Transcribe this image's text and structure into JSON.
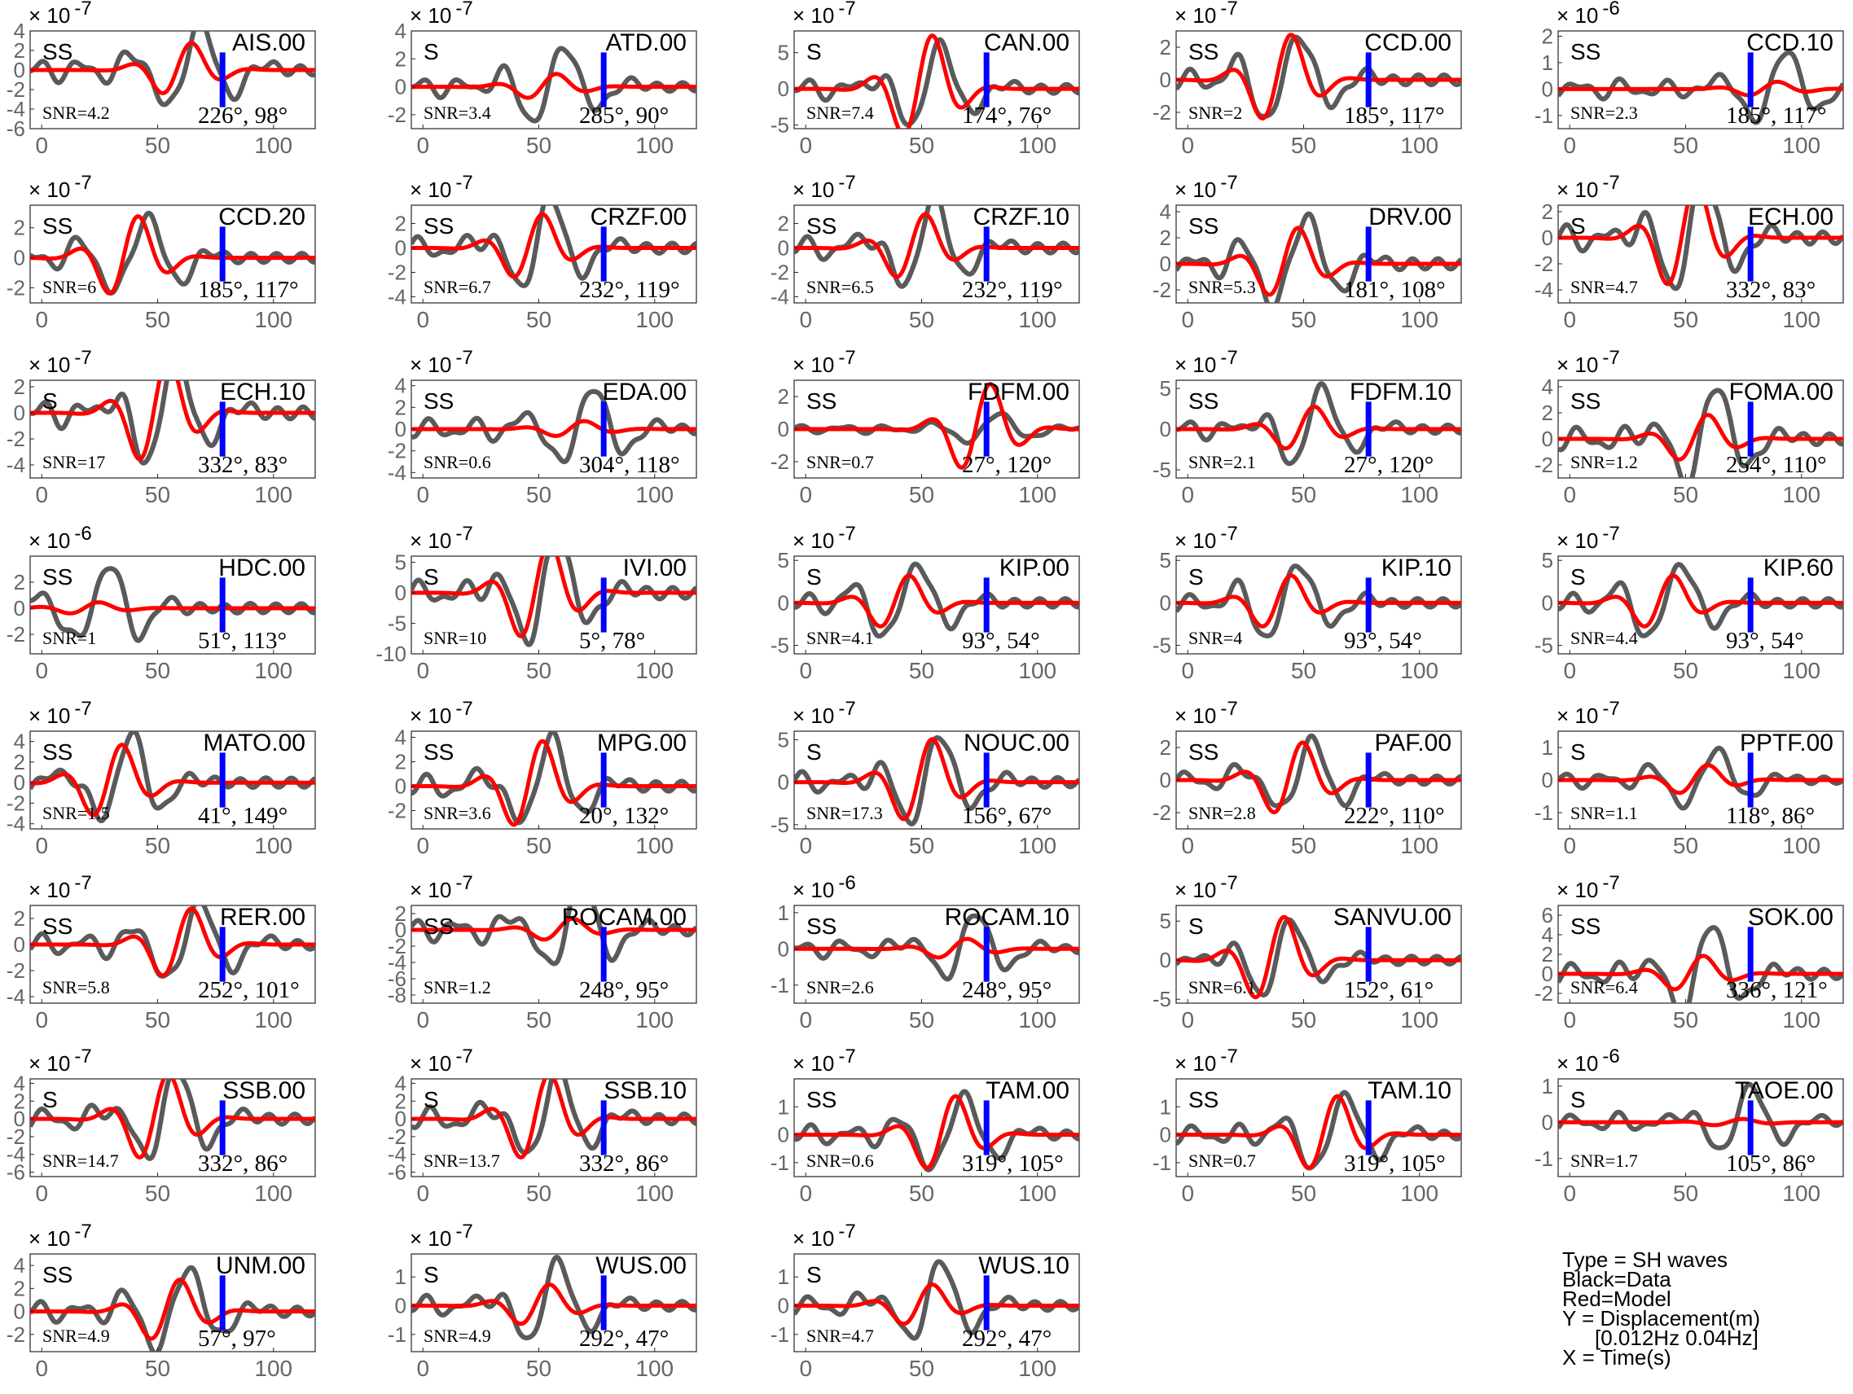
{
  "legend": {
    "lines": [
      "Type = SH waves",
      "Black=Data",
      "Red=Model",
      "Y = Displacement(m)",
      "[0.012Hz 0.04Hz]",
      "X = Time(s)"
    ]
  },
  "chart_data": {
    "type": "line",
    "colors": {
      "data": "#5a5a5a",
      "model": "#ff0000",
      "marker": "#0000ff",
      "ticks": "#666666"
    },
    "x_ticks": [
      0,
      50,
      100
    ],
    "x_range": [
      -5,
      118
    ],
    "marker_time": 78,
    "panels": [
      {
        "station": "AIS.00",
        "phase": "SS",
        "snr": "SNR=4.2",
        "azimuth": "226°, 98°",
        "exponent": "-7",
        "yticks": [
          "4",
          "2",
          "0",
          "-2",
          "-4",
          "-6"
        ],
        "ymin": -6,
        "ymax": 4,
        "model_amp": 3.0,
        "data_amp": 5.0,
        "data_peak": 65
      },
      {
        "station": "ATD.00",
        "phase": "S",
        "snr": "SNR=3.4",
        "azimuth": "285°, 90°",
        "exponent": "-7",
        "yticks": [
          "4",
          "2",
          "0",
          "-2"
        ],
        "ymin": -3,
        "ymax": 4,
        "model_amp": 1.0,
        "data_amp": 3.0,
        "data_peak": 58
      },
      {
        "station": "CAN.00",
        "phase": "S",
        "snr": "SNR=7.4",
        "azimuth": "174°, 76°",
        "exponent": "-7",
        "yticks": [
          "5",
          "0",
          "-5"
        ],
        "ymin": -5.5,
        "ymax": 8,
        "model_amp": 8.0,
        "data_amp": 6.0,
        "data_peak": 55
      },
      {
        "station": "CCD.00",
        "phase": "SS",
        "snr": "SNR=2",
        "azimuth": "185°, 117°",
        "exponent": "-7",
        "yticks": [
          "2",
          "0",
          "-2"
        ],
        "ymin": -3,
        "ymax": 3,
        "model_amp": 3.0,
        "data_amp": 3.0,
        "data_peak": 45
      },
      {
        "station": "CCD.10",
        "phase": "SS",
        "snr": "SNR=2.3",
        "azimuth": "185°, 117°",
        "exponent": "-6",
        "yticks": [
          "2",
          "1",
          "0",
          "-1"
        ],
        "ymin": -1.5,
        "ymax": 2.2,
        "model_amp": 0.3,
        "data_amp": 1.5,
        "data_peak": 90
      },
      {
        "station": "CCD.20",
        "phase": "SS",
        "snr": "SNR=6",
        "azimuth": "185°, 117°",
        "exponent": "-7",
        "yticks": [
          "2",
          "0",
          "-2"
        ],
        "ymin": -3,
        "ymax": 3.5,
        "model_amp": 3.0,
        "data_amp": 3.0,
        "data_peak": 42
      },
      {
        "station": "CRZF.00",
        "phase": "SS",
        "snr": "SNR=6.7",
        "azimuth": "232°, 119°",
        "exponent": "-7",
        "yticks": [
          "2",
          "0",
          "-2",
          "-4"
        ],
        "ymin": -4.5,
        "ymax": 3.5,
        "model_amp": 3.0,
        "data_amp": 4.0,
        "data_peak": 52
      },
      {
        "station": "CRZF.10",
        "phase": "SS",
        "snr": "SNR=6.5",
        "azimuth": "232°, 119°",
        "exponent": "-7",
        "yticks": [
          "2",
          "0",
          "-2",
          "-4"
        ],
        "ymin": -4.5,
        "ymax": 3.5,
        "model_amp": 3.0,
        "data_amp": 4.0,
        "data_peak": 52
      },
      {
        "station": "DRV.00",
        "phase": "SS",
        "snr": "SNR=5.3",
        "azimuth": "181°, 108°",
        "exponent": "-7",
        "yticks": [
          "4",
          "2",
          "0",
          "-2"
        ],
        "ymin": -3,
        "ymax": 4.5,
        "model_amp": 3.0,
        "data_amp": 4.0,
        "data_peak": 48
      },
      {
        "station": "ECH.00",
        "phase": "S",
        "snr": "SNR=4.7",
        "azimuth": "332°, 83°",
        "exponent": "-7",
        "yticks": [
          "2",
          "0",
          "-2",
          "-4"
        ],
        "ymin": -5,
        "ymax": 2.5,
        "model_amp": 4.5,
        "data_amp": 4.5,
        "data_peak": 55
      },
      {
        "station": "ECH.10",
        "phase": "S",
        "snr": "SNR=17",
        "azimuth": "332°, 83°",
        "exponent": "-7",
        "yticks": [
          "2",
          "0",
          "-2",
          "-4"
        ],
        "ymin": -5,
        "ymax": 2.5,
        "model_amp": 4.5,
        "data_amp": 4.5,
        "data_peak": 55
      },
      {
        "station": "EDA.00",
        "phase": "SS",
        "snr": "SNR=0.6",
        "azimuth": "304°, 118°",
        "exponent": "-7",
        "yticks": [
          "4",
          "2",
          "0",
          "-2",
          "-4"
        ],
        "ymin": -4.5,
        "ymax": 4.5,
        "model_amp": 0.8,
        "data_amp": 4.0,
        "data_peak": 70
      },
      {
        "station": "FDFM.00",
        "phase": "SS",
        "snr": "SNR=0.7",
        "azimuth": "27°, 120°",
        "exponent": "-7",
        "yticks": [
          "2",
          "0",
          "-2"
        ],
        "ymin": -3,
        "ymax": 3,
        "model_amp": 3.0,
        "data_amp": 1.0,
        "data_peak": 80
      },
      {
        "station": "FDFM.10",
        "phase": "SS",
        "snr": "SNR=2.1",
        "azimuth": "27°, 120°",
        "exponent": "-7",
        "yticks": [
          "5",
          "0",
          "-5"
        ],
        "ymin": -6,
        "ymax": 6,
        "model_amp": 3.0,
        "data_amp": 5.0,
        "data_peak": 55
      },
      {
        "station": "FOMA.00",
        "phase": "SS",
        "snr": "SNR=1.2",
        "azimuth": "254°, 110°",
        "exponent": "-7",
        "yticks": [
          "4",
          "2",
          "0",
          "-2"
        ],
        "ymin": -3,
        "ymax": 4.5,
        "model_amp": 2.0,
        "data_amp": 4.0,
        "data_peak": 60
      },
      {
        "station": "HDC.00",
        "phase": "SS",
        "snr": "SNR=1",
        "azimuth": "51°, 113°",
        "exponent": "-6",
        "yticks": [
          "2",
          "0",
          "-2"
        ],
        "ymin": -3.5,
        "ymax": 4,
        "model_amp": 0.5,
        "data_amp": 3.5,
        "data_peak": 25
      },
      {
        "station": "IVI.00",
        "phase": "S",
        "snr": "SNR=10",
        "azimuth": "5°, 78°",
        "exponent": "-7",
        "yticks": [
          "5",
          "0",
          "-5",
          "-10"
        ],
        "ymin": -10,
        "ymax": 6,
        "model_amp": 9.0,
        "data_amp": 9.0,
        "data_peak": 55
      },
      {
        "station": "KIP.00",
        "phase": "S",
        "snr": "SNR=4.1",
        "azimuth": "93°, 54°",
        "exponent": "-7",
        "yticks": [
          "5",
          "0",
          "-5"
        ],
        "ymin": -6,
        "ymax": 5.5,
        "model_amp": 3.5,
        "data_amp": 5.0,
        "data_peak": 45
      },
      {
        "station": "KIP.10",
        "phase": "S",
        "snr": "SNR=4",
        "azimuth": "93°, 54°",
        "exponent": "-7",
        "yticks": [
          "5",
          "0",
          "-5"
        ],
        "ymin": -6,
        "ymax": 5.5,
        "model_amp": 3.5,
        "data_amp": 5.0,
        "data_peak": 45
      },
      {
        "station": "KIP.60",
        "phase": "S",
        "snr": "SNR=4.4",
        "azimuth": "93°, 54°",
        "exponent": "-7",
        "yticks": [
          "5",
          "0",
          "-5"
        ],
        "ymin": -6,
        "ymax": 5.5,
        "model_amp": 3.5,
        "data_amp": 5.0,
        "data_peak": 45
      },
      {
        "station": "MATO.00",
        "phase": "SS",
        "snr": "SNR=1.5",
        "azimuth": "41°, 149°",
        "exponent": "-7",
        "yticks": [
          "4",
          "2",
          "0",
          "-2",
          "-4"
        ],
        "ymin": -4.5,
        "ymax": 5,
        "model_amp": 4.0,
        "data_amp": 4.5,
        "data_peak": 35
      },
      {
        "station": "MPG.00",
        "phase": "SS",
        "snr": "SNR=3.6",
        "azimuth": "20°, 132°",
        "exponent": "-7",
        "yticks": [
          "4",
          "2",
          "0",
          "-2"
        ],
        "ymin": -3.5,
        "ymax": 4.5,
        "model_amp": 4.0,
        "data_amp": 4.0,
        "data_peak": 52
      },
      {
        "station": "NOUC.00",
        "phase": "S",
        "snr": "SNR=17.3",
        "azimuth": "156°, 67°",
        "exponent": "-7",
        "yticks": [
          "5",
          "0",
          "-5"
        ],
        "ymin": -5.5,
        "ymax": 6,
        "model_amp": 5.5,
        "data_amp": 5.5,
        "data_peak": 55
      },
      {
        "station": "PAF.00",
        "phase": "SS",
        "snr": "SNR=2.8",
        "azimuth": "222°, 110°",
        "exponent": "-7",
        "yticks": [
          "2",
          "0",
          "-2"
        ],
        "ymin": -3,
        "ymax": 3,
        "model_amp": 2.5,
        "data_amp": 2.5,
        "data_peak": 50
      },
      {
        "station": "PPTF.00",
        "phase": "S",
        "snr": "SNR=1.1",
        "azimuth": "118°, 86°",
        "exponent": "-7",
        "yticks": [
          "1",
          "0",
          "-1"
        ],
        "ymin": -1.5,
        "ymax": 1.5,
        "model_amp": 0.5,
        "data_amp": 1.0,
        "data_peak": 60
      },
      {
        "station": "RER.00",
        "phase": "SS",
        "snr": "SNR=5.8",
        "azimuth": "252°, 101°",
        "exponent": "-7",
        "yticks": [
          "2",
          "0",
          "-2",
          "-4"
        ],
        "ymin": -4.5,
        "ymax": 3,
        "model_amp": 3.0,
        "data_amp": 3.5,
        "data_peak": 65
      },
      {
        "station": "ROCAM.00",
        "phase": "SS",
        "snr": "SNR=1.2",
        "azimuth": "248°, 95°",
        "exponent": "-7",
        "yticks": [
          "2",
          "0",
          "-2",
          "-4",
          "-6",
          "-8"
        ],
        "ymin": -9,
        "ymax": 3,
        "model_amp": 1.5,
        "data_amp": 6.0,
        "data_peak": 65
      },
      {
        "station": "ROCAM.10",
        "phase": "SS",
        "snr": "SNR=2.6",
        "azimuth": "248°, 95°",
        "exponent": "-6",
        "yticks": [
          "1",
          "0",
          "-1"
        ],
        "ymin": -1.5,
        "ymax": 1.2,
        "model_amp": 0.3,
        "data_amp": 1.0,
        "data_peak": 70
      },
      {
        "station": "SANVU.00",
        "phase": "S",
        "snr": "SNR=6.1",
        "azimuth": "152°, 61°",
        "exponent": "-7",
        "yticks": [
          "5",
          "0",
          "-5"
        ],
        "ymin": -5.5,
        "ymax": 7,
        "model_amp": 6.0,
        "data_amp": 5.0,
        "data_peak": 42
      },
      {
        "station": "SOK.00",
        "phase": "SS",
        "snr": "SNR=6.4",
        "azimuth": "336°, 121°",
        "exponent": "-7",
        "yticks": [
          "6",
          "4",
          "2",
          "0",
          "-2"
        ],
        "ymin": -3,
        "ymax": 7,
        "model_amp": 2.0,
        "data_amp": 5.0,
        "data_peak": 58
      },
      {
        "station": "SSB.00",
        "phase": "S",
        "snr": "SNR=14.7",
        "azimuth": "332°, 86°",
        "exponent": "-7",
        "yticks": [
          "4",
          "2",
          "0",
          "-2",
          "-4",
          "-6"
        ],
        "ymin": -6.5,
        "ymax": 4.5,
        "model_amp": 5.5,
        "data_amp": 5.5,
        "data_peak": 55
      },
      {
        "station": "SSB.10",
        "phase": "S",
        "snr": "SNR=13.7",
        "azimuth": "332°, 86°",
        "exponent": "-7",
        "yticks": [
          "4",
          "2",
          "0",
          "-2",
          "-4",
          "-6"
        ],
        "ymin": -6.5,
        "ymax": 4.5,
        "model_amp": 5.5,
        "data_amp": 5.5,
        "data_peak": 55
      },
      {
        "station": "TAM.00",
        "phase": "SS",
        "snr": "SNR=0.6",
        "azimuth": "319°, 105°",
        "exponent": "-7",
        "yticks": [
          "1",
          "0",
          "-1"
        ],
        "ymin": -1.5,
        "ymax": 2,
        "model_amp": 1.5,
        "data_amp": 1.5,
        "data_peak": 65
      },
      {
        "station": "TAM.10",
        "phase": "SS",
        "snr": "SNR=0.7",
        "azimuth": "319°, 105°",
        "exponent": "-7",
        "yticks": [
          "1",
          "0",
          "-1"
        ],
        "ymin": -1.5,
        "ymax": 2,
        "model_amp": 1.5,
        "data_amp": 1.5,
        "data_peak": 65
      },
      {
        "station": "TAOE.00",
        "phase": "S",
        "snr": "SNR=1.7",
        "azimuth": "105°, 86°",
        "exponent": "-6",
        "yticks": [
          "1",
          "0",
          "-1"
        ],
        "ymin": -1.5,
        "ymax": 1.2,
        "model_amp": 0.1,
        "data_amp": 1.0,
        "data_peak": 75
      },
      {
        "station": "UNM.00",
        "phase": "SS",
        "snr": "SNR=4.9",
        "azimuth": "57°, 97°",
        "exponent": "-7",
        "yticks": [
          "4",
          "2",
          "0",
          "-2"
        ],
        "ymin": -3.5,
        "ymax": 5,
        "model_amp": 3.0,
        "data_amp": 4.0,
        "data_peak": 60
      },
      {
        "station": "WUS.00",
        "phase": "S",
        "snr": "SNR=4.9",
        "azimuth": "292°, 47°",
        "exponent": "-7",
        "yticks": [
          "1",
          "0",
          "-1"
        ],
        "ymin": -1.6,
        "ymax": 1.8,
        "model_amp": 0.8,
        "data_amp": 1.5,
        "data_peak": 55
      },
      {
        "station": "WUS.10",
        "phase": "S",
        "snr": "SNR=4.7",
        "azimuth": "292°, 47°",
        "exponent": "-7",
        "yticks": [
          "1",
          "0",
          "-1"
        ],
        "ymin": -1.6,
        "ymax": 1.8,
        "model_amp": 0.8,
        "data_amp": 1.5,
        "data_peak": 55
      }
    ]
  }
}
